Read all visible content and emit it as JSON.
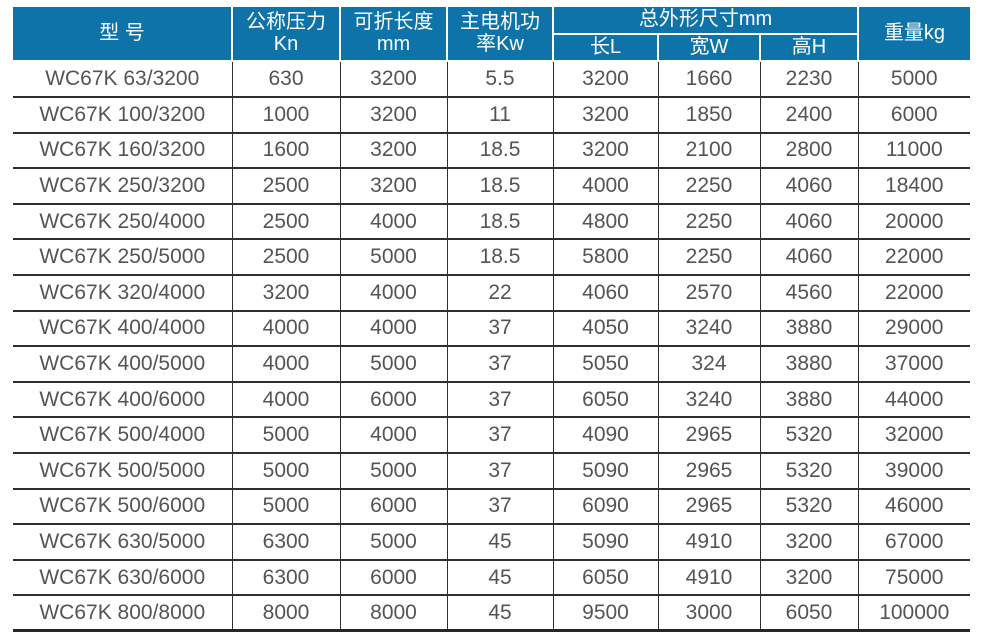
{
  "colors": {
    "header_background": "#0e73a8",
    "header_text": "#ffffff",
    "body_text": "#545456",
    "grid_line": "#2f2f31",
    "page_background": "#ffffff"
  },
  "table": {
    "headers": {
      "model": "型 号",
      "pressure": "公称压力\nKn",
      "fold_length": "可折长度\nmm",
      "motor_power": "主电机功\n率Kw",
      "dimensions_group": "总外形尺寸mm",
      "dim_length": "长L",
      "dim_width": "宽W",
      "dim_height": "高H",
      "weight": "重量kg"
    },
    "rows": [
      [
        "WC67K 63/3200",
        "630",
        "3200",
        "5.5",
        "3200",
        "1660",
        "2230",
        "5000"
      ],
      [
        "WC67K 100/3200",
        "1000",
        "3200",
        "11",
        "3200",
        "1850",
        "2400",
        "6000"
      ],
      [
        "WC67K 160/3200",
        "1600",
        "3200",
        "18.5",
        "3200",
        "2100",
        "2800",
        "11000"
      ],
      [
        "WC67K 250/3200",
        "2500",
        "3200",
        "18.5",
        "4000",
        "2250",
        "4060",
        "18400"
      ],
      [
        "WC67K 250/4000",
        "2500",
        "4000",
        "18.5",
        "4800",
        "2250",
        "4060",
        "20000"
      ],
      [
        "WC67K 250/5000",
        "2500",
        "5000",
        "18.5",
        "5800",
        "2250",
        "4060",
        "22000"
      ],
      [
        "WC67K 320/4000",
        "3200",
        "4000",
        "22",
        "4060",
        "2570",
        "4560",
        "22000"
      ],
      [
        "WC67K 400/4000",
        "4000",
        "4000",
        "37",
        "4050",
        "3240",
        "3880",
        "29000"
      ],
      [
        "WC67K 400/5000",
        "4000",
        "5000",
        "37",
        "5050",
        "324",
        "3880",
        "37000"
      ],
      [
        "WC67K 400/6000",
        "4000",
        "6000",
        "37",
        "6050",
        "3240",
        "3880",
        "44000"
      ],
      [
        "WC67K 500/4000",
        "5000",
        "4000",
        "37",
        "4090",
        "2965",
        "5320",
        "32000"
      ],
      [
        "WC67K 500/5000",
        "5000",
        "5000",
        "37",
        "5090",
        "2965",
        "5320",
        "39000"
      ],
      [
        "WC67K 500/6000",
        "5000",
        "6000",
        "37",
        "6090",
        "2965",
        "5320",
        "46000"
      ],
      [
        "WC67K 630/5000",
        "6300",
        "5000",
        "45",
        "5090",
        "4910",
        "3200",
        "67000"
      ],
      [
        "WC67K 630/6000",
        "6300",
        "6000",
        "45",
        "6050",
        "4910",
        "3200",
        "75000"
      ],
      [
        "WC67K 800/8000",
        "8000",
        "8000",
        "45",
        "9500",
        "3000",
        "6050",
        "100000"
      ]
    ]
  },
  "chart_data": {
    "type": "table",
    "columns": [
      "型号",
      "公称压力Kn",
      "可折长度mm",
      "主电机功率Kw",
      "总外形尺寸mm 长L",
      "总外形尺寸mm 宽W",
      "总外形尺寸mm 高H",
      "重量kg"
    ],
    "rows": [
      [
        "WC67K 63/3200",
        "630",
        "3200",
        "5.5",
        "3200",
        "1660",
        "2230",
        "5000"
      ],
      [
        "WC67K 100/3200",
        "1000",
        "3200",
        "11",
        "3200",
        "1850",
        "2400",
        "6000"
      ],
      [
        "WC67K 160/3200",
        "1600",
        "3200",
        "18.5",
        "3200",
        "2100",
        "2800",
        "11000"
      ],
      [
        "WC67K 250/3200",
        "2500",
        "3200",
        "18.5",
        "4000",
        "2250",
        "4060",
        "18400"
      ],
      [
        "WC67K 250/4000",
        "2500",
        "4000",
        "18.5",
        "4800",
        "2250",
        "4060",
        "20000"
      ],
      [
        "WC67K 250/5000",
        "2500",
        "5000",
        "18.5",
        "5800",
        "2250",
        "4060",
        "22000"
      ],
      [
        "WC67K 320/4000",
        "3200",
        "4000",
        "22",
        "4060",
        "2570",
        "4560",
        "22000"
      ],
      [
        "WC67K 400/4000",
        "4000",
        "4000",
        "37",
        "4050",
        "3240",
        "3880",
        "29000"
      ],
      [
        "WC67K 400/5000",
        "4000",
        "5000",
        "37",
        "5050",
        "324",
        "3880",
        "37000"
      ],
      [
        "WC67K 400/6000",
        "4000",
        "6000",
        "37",
        "6050",
        "3240",
        "3880",
        "44000"
      ],
      [
        "WC67K 500/4000",
        "5000",
        "4000",
        "37",
        "4090",
        "2965",
        "5320",
        "32000"
      ],
      [
        "WC67K 500/5000",
        "5000",
        "5000",
        "37",
        "5090",
        "2965",
        "5320",
        "39000"
      ],
      [
        "WC67K 500/6000",
        "5000",
        "6000",
        "37",
        "6090",
        "2965",
        "5320",
        "46000"
      ],
      [
        "WC67K 630/5000",
        "6300",
        "5000",
        "45",
        "5090",
        "4910",
        "3200",
        "67000"
      ],
      [
        "WC67K 630/6000",
        "6300",
        "6000",
        "45",
        "6050",
        "4910",
        "3200",
        "75000"
      ],
      [
        "WC67K 800/8000",
        "8000",
        "8000",
        "45",
        "9500",
        "3000",
        "6050",
        "100000"
      ]
    ]
  }
}
